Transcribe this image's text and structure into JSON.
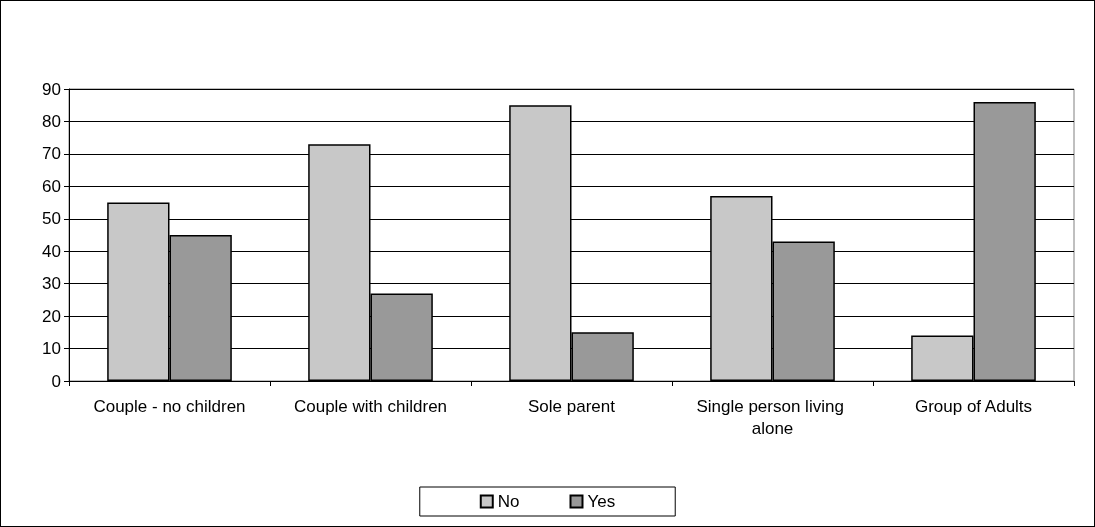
{
  "chart_data": {
    "type": "bar",
    "categories": [
      "Couple - no children",
      "Couple with children",
      "Sole parent",
      "Single person living alone",
      "Group of Adults"
    ],
    "series": [
      {
        "name": "No",
        "color": "#c8c8c8",
        "values": [
          55,
          73,
          85,
          57,
          14
        ]
      },
      {
        "name": "Yes",
        "color": "#999999",
        "values": [
          45,
          27,
          15,
          43,
          86
        ]
      }
    ],
    "ylim": [
      0,
      90
    ],
    "yticks": [
      0,
      10,
      20,
      30,
      40,
      50,
      60,
      70,
      80,
      90
    ],
    "grid": "y",
    "legend": "bottom"
  }
}
